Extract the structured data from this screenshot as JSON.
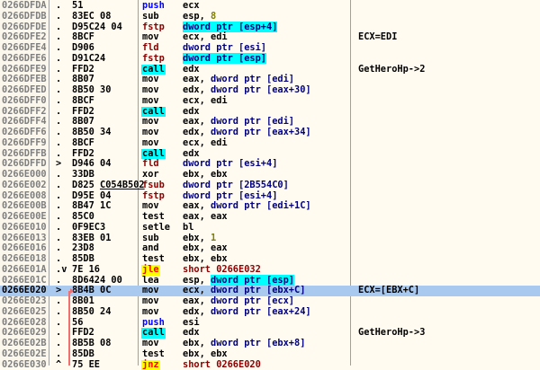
{
  "colors": {
    "background": "#fffbf0",
    "selection": "#a9c9ef",
    "call_highlight": "#00ffff",
    "jump_highlight": "#ffff00",
    "jump_arrow": "#f07070"
  },
  "selected_address": "0266E020",
  "rows": [
    {
      "addr": "0266DFDA",
      "mark": ".",
      "hex": "51",
      "mn": "push",
      "mt": "push",
      "ops": [
        [
          "ecx",
          "reg"
        ]
      ]
    },
    {
      "addr": "0266DFDB",
      "mark": ".",
      "hex": "83EC 08",
      "mn": "sub",
      "ops": [
        [
          "esp, ",
          "reg"
        ],
        [
          "8",
          "imm"
        ]
      ]
    },
    {
      "addr": "0266DFDE",
      "mark": ".",
      "hex": "D95C24 04",
      "mn": "fstp",
      "mt": "fpu",
      "ops": [
        [
          "dword ptr [esp+4]",
          "memhl"
        ]
      ]
    },
    {
      "addr": "0266DFE2",
      "mark": ".",
      "hex": "8BCF",
      "mn": "mov",
      "ops": [
        [
          "ecx, edi",
          "reg"
        ]
      ],
      "comment": "ECX=EDI"
    },
    {
      "addr": "0266DFE4",
      "mark": ".",
      "hex": "D906",
      "mn": "fld",
      "mt": "fpu",
      "ops": [
        [
          "dword ptr [esi]",
          "mem"
        ]
      ]
    },
    {
      "addr": "0266DFE6",
      "mark": ".",
      "hex": "D91C24",
      "mn": "fstp",
      "mt": "fpu",
      "ops": [
        [
          "dword ptr [esp]",
          "memhl"
        ]
      ]
    },
    {
      "addr": "0266DFE9",
      "mark": ".",
      "hex": "FFD2",
      "mn": "call",
      "mt": "call",
      "ops": [
        [
          "edx",
          "reg"
        ]
      ],
      "comment": "GetHeroHp->2"
    },
    {
      "addr": "0266DFEB",
      "mark": ".",
      "hex": "8B07",
      "mn": "mov",
      "ops": [
        [
          "eax, ",
          "reg"
        ],
        [
          "dword ptr [edi]",
          "mem"
        ]
      ]
    },
    {
      "addr": "0266DFED",
      "mark": ".",
      "hex": "8B50 30",
      "mn": "mov",
      "ops": [
        [
          "edx, ",
          "reg"
        ],
        [
          "dword ptr [eax+30]",
          "mem"
        ]
      ]
    },
    {
      "addr": "0266DFF0",
      "mark": ".",
      "hex": "8BCF",
      "mn": "mov",
      "ops": [
        [
          "ecx, edi",
          "reg"
        ]
      ]
    },
    {
      "addr": "0266DFF2",
      "mark": ".",
      "hex": "FFD2",
      "mn": "call",
      "mt": "call",
      "ops": [
        [
          "edx",
          "reg"
        ]
      ]
    },
    {
      "addr": "0266DFF4",
      "mark": ".",
      "hex": "8B07",
      "mn": "mov",
      "ops": [
        [
          "eax, ",
          "reg"
        ],
        [
          "dword ptr [edi]",
          "mem"
        ]
      ]
    },
    {
      "addr": "0266DFF6",
      "mark": ".",
      "hex": "8B50 34",
      "mn": "mov",
      "ops": [
        [
          "edx, ",
          "reg"
        ],
        [
          "dword ptr [eax+34]",
          "mem"
        ]
      ]
    },
    {
      "addr": "0266DFF9",
      "mark": ".",
      "hex": "8BCF",
      "mn": "mov",
      "ops": [
        [
          "ecx, edi",
          "reg"
        ]
      ]
    },
    {
      "addr": "0266DFFB",
      "mark": ".",
      "hex": "FFD2",
      "mn": "call",
      "mt": "call",
      "ops": [
        [
          "edx",
          "reg"
        ]
      ]
    },
    {
      "addr": "0266DFFD",
      "mark": ">",
      "hex": "D946 04",
      "mn": "fld",
      "mt": "fpu",
      "ops": [
        [
          "dword ptr [esi+4]",
          "mem"
        ]
      ]
    },
    {
      "addr": "0266E000",
      "mark": ".",
      "hex": "33DB",
      "mn": "xor",
      "ops": [
        [
          "ebx, ebx",
          "reg"
        ]
      ]
    },
    {
      "addr": "0266E002",
      "mark": ".",
      "hex": "D825",
      "hex_fixup": "C054B502",
      "mn": "fsub",
      "mt": "fpu",
      "ops": [
        [
          "dword ptr [2B554C0]",
          "mem"
        ]
      ]
    },
    {
      "addr": "0266E008",
      "mark": ".",
      "hex": "D95E 04",
      "mn": "fstp",
      "mt": "fpu",
      "ops": [
        [
          "dword ptr [esi+4]",
          "mem"
        ]
      ]
    },
    {
      "addr": "0266E00B",
      "mark": ".",
      "hex": "8B47 1C",
      "mn": "mov",
      "ops": [
        [
          "eax, ",
          "reg"
        ],
        [
          "dword ptr [edi+1C]",
          "mem"
        ]
      ]
    },
    {
      "addr": "0266E00E",
      "mark": ".",
      "hex": "85C0",
      "mn": "test",
      "ops": [
        [
          "eax, eax",
          "reg"
        ]
      ]
    },
    {
      "addr": "0266E010",
      "mark": ".",
      "hex": "0F9EC3",
      "mn": "setle",
      "ops": [
        [
          "bl",
          "reg"
        ]
      ]
    },
    {
      "addr": "0266E013",
      "mark": ".",
      "hex": "83EB 01",
      "mn": "sub",
      "ops": [
        [
          "ebx, ",
          "reg"
        ],
        [
          "1",
          "imm"
        ]
      ]
    },
    {
      "addr": "0266E016",
      "mark": ".",
      "hex": "23D8",
      "mn": "and",
      "ops": [
        [
          "ebx, eax",
          "reg"
        ]
      ]
    },
    {
      "addr": "0266E018",
      "mark": ".",
      "hex": "85DB",
      "mn": "test",
      "ops": [
        [
          "ebx, ebx",
          "reg"
        ]
      ]
    },
    {
      "addr": "0266E01A",
      "mark": ".v",
      "hex": "7E 16",
      "mn": "jle",
      "mt": "jcc",
      "ops": [
        [
          "short 0266E032",
          "jmp"
        ]
      ]
    },
    {
      "addr": "0266E01C",
      "mark": ".",
      "hex": "8D6424 00",
      "mn": "lea",
      "ops": [
        [
          "esp, ",
          "reg"
        ],
        [
          "dword ptr [esp]",
          "memhl"
        ]
      ]
    },
    {
      "addr": "0266E020",
      "mark": ">",
      "hex": "8B4B 0C",
      "mn": "mov",
      "ops": [
        [
          "ecx, ",
          "reg"
        ],
        [
          "dword ptr [ebx+C]",
          "mem"
        ]
      ],
      "comment": "ECX=[EBX+C]",
      "selected": true
    },
    {
      "addr": "0266E023",
      "mark": ".",
      "hex": "8B01",
      "mn": "mov",
      "ops": [
        [
          "eax, ",
          "reg"
        ],
        [
          "dword ptr [ecx]",
          "mem"
        ]
      ]
    },
    {
      "addr": "0266E025",
      "mark": ".",
      "hex": "8B50 24",
      "mn": "mov",
      "ops": [
        [
          "edx, ",
          "reg"
        ],
        [
          "dword ptr [eax+24]",
          "mem"
        ]
      ]
    },
    {
      "addr": "0266E028",
      "mark": ".",
      "hex": "56",
      "mn": "push",
      "mt": "push",
      "ops": [
        [
          "esi",
          "reg"
        ]
      ]
    },
    {
      "addr": "0266E029",
      "mark": ".",
      "hex": "FFD2",
      "mn": "call",
      "mt": "call",
      "ops": [
        [
          "edx",
          "reg"
        ]
      ],
      "comment": "GetHeroHp->3"
    },
    {
      "addr": "0266E02B",
      "mark": ".",
      "hex": "8B5B 08",
      "mn": "mov",
      "ops": [
        [
          "ebx, ",
          "reg"
        ],
        [
          "dword ptr [ebx+8]",
          "mem"
        ]
      ]
    },
    {
      "addr": "0266E02E",
      "mark": ".",
      "hex": "85DB",
      "mn": "test",
      "ops": [
        [
          "ebx, ebx",
          "reg"
        ]
      ]
    },
    {
      "addr": "0266E030",
      "mark": "^",
      "hex": "75 EE",
      "mn": "jnz",
      "mt": "jcc",
      "ops": [
        [
          "short 0266E020",
          "jmp"
        ]
      ]
    }
  ]
}
